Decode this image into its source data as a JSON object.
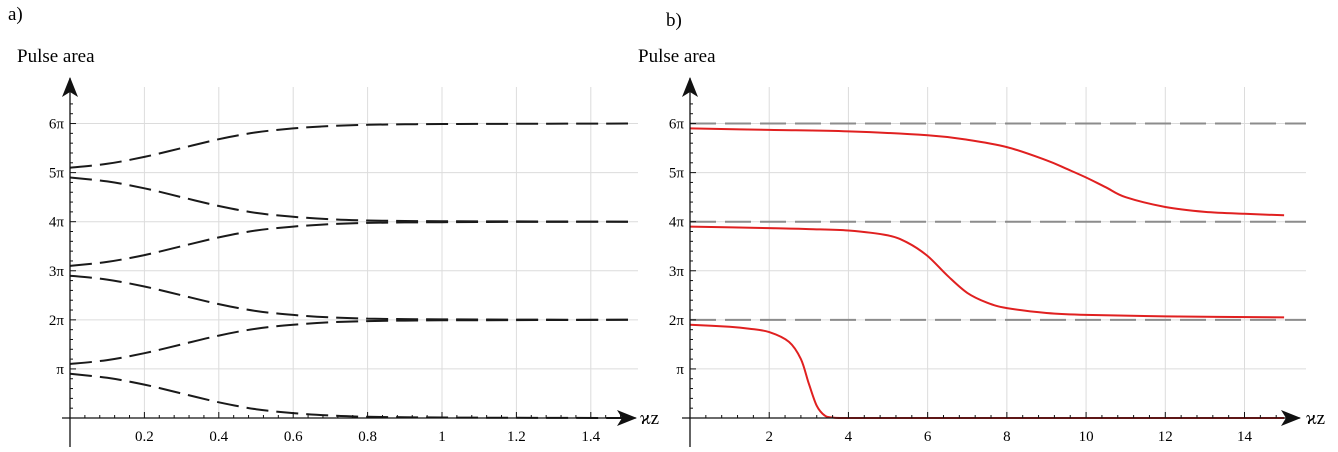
{
  "chart_data": [
    {
      "type": "line",
      "panel_label": "a)",
      "ylabel": "Pulse area",
      "xlabel": "ϰz",
      "xlim": [
        0,
        1.5
      ],
      "ylim": [
        0,
        6.5
      ],
      "y_unit": "π",
      "grid": true,
      "x_ticks": [
        0.2,
        0.4,
        0.6,
        0.8,
        1,
        1.2,
        1.4
      ],
      "x_tick_labels": [
        "0.2",
        "0.4",
        "0.6",
        "0.8",
        "1",
        "1.2",
        "1.4"
      ],
      "y_ticks": [
        1,
        2,
        3,
        4,
        5,
        6
      ],
      "y_tick_labels": [
        "π",
        "2π",
        "3π",
        "4π",
        "5π",
        "6π"
      ],
      "line_color": "#1a1a1a",
      "line_style": "long-dash",
      "series": [
        {
          "x": [
            0,
            0.1,
            0.2,
            0.3,
            0.4,
            0.5,
            0.6,
            0.7,
            0.8,
            0.9,
            1.0,
            1.2,
            1.5
          ],
          "values": [
            5.1,
            5.18,
            5.32,
            5.5,
            5.68,
            5.82,
            5.9,
            5.95,
            5.975,
            5.985,
            5.99,
            5.995,
            6.0
          ]
        },
        {
          "x": [
            0,
            0.1,
            0.2,
            0.3,
            0.4,
            0.5,
            0.6,
            0.7,
            0.8,
            0.9,
            1.0,
            1.2,
            1.5
          ],
          "values": [
            4.9,
            4.82,
            4.68,
            4.5,
            4.32,
            4.18,
            4.1,
            4.05,
            4.025,
            4.015,
            4.01,
            4.005,
            4.0
          ]
        },
        {
          "x": [
            0,
            0.1,
            0.2,
            0.3,
            0.4,
            0.5,
            0.6,
            0.7,
            0.8,
            0.9,
            1.0,
            1.2,
            1.5
          ],
          "values": [
            3.1,
            3.18,
            3.32,
            3.5,
            3.68,
            3.82,
            3.9,
            3.95,
            3.975,
            3.985,
            3.99,
            3.995,
            4.0
          ]
        },
        {
          "x": [
            0,
            0.1,
            0.2,
            0.3,
            0.4,
            0.5,
            0.6,
            0.7,
            0.8,
            0.9,
            1.0,
            1.2,
            1.5
          ],
          "values": [
            2.9,
            2.82,
            2.68,
            2.5,
            2.32,
            2.18,
            2.1,
            2.05,
            2.025,
            2.015,
            2.01,
            2.005,
            2.0
          ]
        },
        {
          "x": [
            0,
            0.1,
            0.2,
            0.3,
            0.4,
            0.5,
            0.6,
            0.7,
            0.8,
            0.9,
            1.0,
            1.2,
            1.5
          ],
          "values": [
            1.1,
            1.18,
            1.32,
            1.5,
            1.68,
            1.82,
            1.9,
            1.95,
            1.975,
            1.985,
            1.99,
            1.995,
            2.0
          ]
        },
        {
          "x": [
            0,
            0.1,
            0.2,
            0.3,
            0.4,
            0.5,
            0.6,
            0.7,
            0.8,
            0.9,
            1.0,
            1.2,
            1.5
          ],
          "values": [
            0.9,
            0.82,
            0.68,
            0.5,
            0.32,
            0.18,
            0.1,
            0.05,
            0.025,
            0.015,
            0.01,
            0.005,
            0.0
          ]
        }
      ]
    },
    {
      "type": "line",
      "panel_label": "b)",
      "ylabel": "Pulse area",
      "xlabel": "ϰz",
      "xlim": [
        0,
        15.3
      ],
      "ylim": [
        0,
        6.5
      ],
      "y_unit": "π",
      "grid": true,
      "x_ticks": [
        2,
        4,
        6,
        8,
        10,
        12,
        14
      ],
      "x_tick_labels": [
        "2",
        "4",
        "6",
        "8",
        "10",
        "12",
        "14"
      ],
      "y_ticks": [
        1,
        2,
        3,
        4,
        5,
        6
      ],
      "y_tick_labels": [
        "π",
        "2π",
        "3π",
        "4π",
        "5π",
        "6π"
      ],
      "reference_lines": {
        "values": [
          6,
          4,
          2
        ],
        "color": "#8c8c8c",
        "style": "long-dash"
      },
      "line_color": "#e02020",
      "series": [
        {
          "x": [
            0,
            2,
            4,
            6,
            7,
            8,
            9,
            9.5,
            10,
            10.5,
            11,
            12,
            13,
            14,
            15
          ],
          "values": [
            5.9,
            5.87,
            5.84,
            5.76,
            5.67,
            5.52,
            5.25,
            5.08,
            4.9,
            4.7,
            4.5,
            4.3,
            4.2,
            4.16,
            4.13
          ]
        },
        {
          "x": [
            0,
            2,
            3,
            4,
            5,
            5.5,
            6,
            6.5,
            7,
            7.5,
            8,
            9,
            10,
            12,
            15
          ],
          "values": [
            3.9,
            3.87,
            3.85,
            3.82,
            3.72,
            3.57,
            3.3,
            2.9,
            2.55,
            2.35,
            2.24,
            2.14,
            2.1,
            2.07,
            2.05
          ]
        },
        {
          "x": [
            0,
            1,
            1.5,
            2,
            2.5,
            2.8,
            3.0,
            3.2,
            3.4,
            3.6,
            4.0,
            6,
            10,
            15
          ],
          "values": [
            1.9,
            1.86,
            1.82,
            1.75,
            1.55,
            1.2,
            0.7,
            0.25,
            0.05,
            0.01,
            0.0,
            0.0,
            0.0,
            0.0
          ]
        }
      ]
    }
  ]
}
